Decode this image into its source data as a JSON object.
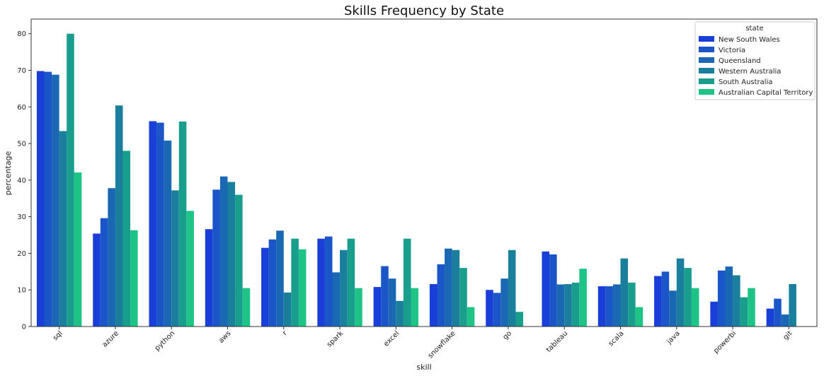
{
  "chart_data": {
    "type": "bar",
    "title": "Skills Frequency by State",
    "xlabel": "skill",
    "ylabel": "percentage",
    "ylim": [
      0,
      84
    ],
    "yticks": [
      0,
      10,
      20,
      30,
      40,
      50,
      60,
      70,
      80
    ],
    "grid": false,
    "legend": {
      "title": "state",
      "placement": "top-right"
    },
    "categories": [
      "sql",
      "azure",
      "python",
      "aws",
      "r",
      "spark",
      "excel",
      "snowflake",
      "go",
      "tableau",
      "scala",
      "java",
      "powerbi",
      "git"
    ],
    "series": [
      {
        "name": "New South Wales",
        "color": "#1a3ed8",
        "values": [
          69.8,
          25.4,
          56.1,
          26.6,
          21.5,
          24.0,
          10.8,
          11.6,
          10.0,
          20.5,
          11.0,
          13.8,
          6.8,
          4.9
        ]
      },
      {
        "name": "Victoria",
        "color": "#1a56c8",
        "values": [
          69.6,
          29.6,
          55.7,
          37.4,
          23.8,
          24.6,
          16.5,
          17.0,
          9.2,
          19.7,
          11.0,
          15.0,
          15.3,
          7.6
        ]
      },
      {
        "name": "Queensland",
        "color": "#1a67b4",
        "values": [
          68.8,
          37.8,
          50.8,
          41.0,
          26.2,
          14.8,
          13.1,
          21.3,
          13.1,
          11.5,
          11.5,
          9.8,
          16.4,
          3.3
        ]
      },
      {
        "name": "Western Australia",
        "color": "#1a7f9c",
        "values": [
          53.4,
          60.4,
          37.2,
          39.5,
          9.3,
          20.9,
          7.0,
          20.9,
          20.9,
          11.6,
          18.6,
          18.6,
          14.0,
          11.6
        ]
      },
      {
        "name": "South Australia",
        "color": "#199e8e",
        "values": [
          80.0,
          48.0,
          56.0,
          36.0,
          24.0,
          24.0,
          24.0,
          16.0,
          4.0,
          12.0,
          12.0,
          16.0,
          8.0,
          0
        ]
      },
      {
        "name": "Australian Capital Territory",
        "color": "#1ec486",
        "values": [
          42.1,
          26.3,
          31.6,
          10.5,
          21.1,
          10.5,
          10.5,
          5.3,
          0,
          15.8,
          5.3,
          10.5,
          10.5,
          0
        ]
      }
    ]
  }
}
